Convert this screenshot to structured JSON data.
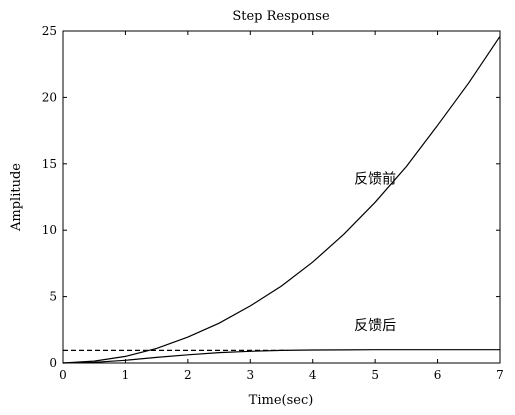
{
  "chart_data": {
    "type": "line",
    "title": "Step Response",
    "xlabel": "Time(sec)",
    "ylabel": "Amplitude",
    "xlim": [
      0,
      7
    ],
    "ylim": [
      0,
      25
    ],
    "xticks": [
      0,
      1,
      2,
      3,
      4,
      5,
      6,
      7
    ],
    "yticks": [
      0,
      5,
      10,
      15,
      20,
      25
    ],
    "grid": false,
    "legend": "none",
    "series": [
      {
        "label": "反馈前",
        "style": "solid",
        "x": [
          0,
          0.5,
          1,
          1.5,
          2,
          2.5,
          3,
          3.5,
          4,
          4.5,
          5,
          5.5,
          6,
          6.5,
          7
        ],
        "y": [
          0,
          0.14,
          0.5,
          1.1,
          1.95,
          3.0,
          4.3,
          5.8,
          7.6,
          9.7,
          12.1,
          14.8,
          17.9,
          21.1,
          24.6
        ]
      },
      {
        "label": "反馈后",
        "style": "solid",
        "x": [
          0,
          0.5,
          1,
          1.5,
          2,
          2.5,
          3,
          3.5,
          4,
          4.5,
          5,
          5.5,
          6,
          6.5,
          7
        ],
        "y": [
          0,
          0.05,
          0.2,
          0.42,
          0.62,
          0.78,
          0.88,
          0.95,
          0.98,
          0.99,
          1.0,
          1.0,
          1.0,
          1.0,
          1.0
        ]
      },
      {
        "label": "",
        "style": "dashed",
        "x": [
          0,
          3.6
        ],
        "y": [
          0.95,
          0.95
        ]
      }
    ],
    "annotations": [
      {
        "text": "反馈前",
        "x": 5.0,
        "y": 13.5
      },
      {
        "text": "反馈后",
        "x": 5.0,
        "y": 2.5
      }
    ]
  }
}
